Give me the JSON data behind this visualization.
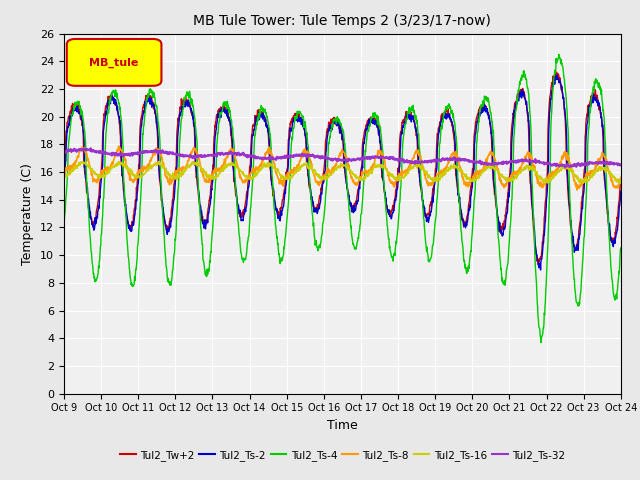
{
  "title": "MB Tule Tower: Tule Temps 2 (3/23/17-now)",
  "xlabel": "Time",
  "ylabel": "Temperature (C)",
  "ylim": [
    0,
    26
  ],
  "yticks": [
    0,
    2,
    4,
    6,
    8,
    10,
    12,
    14,
    16,
    18,
    20,
    22,
    24,
    26
  ],
  "xtick_labels": [
    "Oct 9",
    "Oct 10",
    "Oct 11",
    "Oct 12",
    "Oct 13",
    "Oct 14",
    "Oct 15",
    "Oct 16",
    "Oct 17",
    "Oct 18",
    "Oct 19",
    "Oct 20",
    "Oct 21",
    "Oct 22",
    "Oct 23",
    "Oct 24"
  ],
  "legend_box_label": "MB_tule",
  "legend_box_color": "#ffff00",
  "legend_box_border": "#cc0000",
  "series": [
    {
      "label": "Tul2_Tw+2",
      "color": "#cc0000",
      "lw": 1.0
    },
    {
      "label": "Tul2_Ts-2",
      "color": "#0000cc",
      "lw": 1.0
    },
    {
      "label": "Tul2_Ts-4",
      "color": "#00cc00",
      "lw": 1.0
    },
    {
      "label": "Tul2_Ts-8",
      "color": "#ff9900",
      "lw": 1.2
    },
    {
      "label": "Tul2_Ts-16",
      "color": "#cccc00",
      "lw": 1.2
    },
    {
      "label": "Tul2_Ts-32",
      "color": "#9933cc",
      "lw": 1.5
    }
  ],
  "bg_color": "#e8e8e8",
  "plot_bg": "#f0f0f0"
}
